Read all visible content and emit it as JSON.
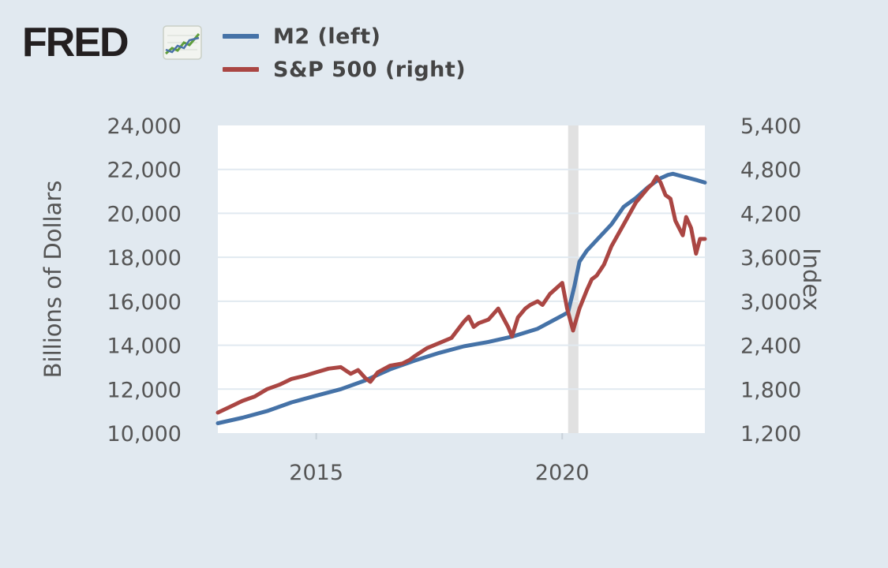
{
  "brand": {
    "logo_text": "FRED",
    "logo_icon": "line-chart-icon",
    "colors": {
      "logo_green": "#5f9e3c",
      "logo_blue": "#4a72a8"
    }
  },
  "legend": [
    {
      "label": "M2 (left)",
      "color": "#4572a7"
    },
    {
      "label": "S&P 500 (right)",
      "color": "#aa4643"
    }
  ],
  "chart_data": {
    "type": "line",
    "title": "",
    "xlabel": "",
    "y_left_label": "Billions of Dollars",
    "y_right_label": "Index",
    "x_range": [
      2013.0,
      2022.9
    ],
    "y_left_range": [
      10000,
      24000
    ],
    "y_right_range": [
      1200,
      5400
    ],
    "x_ticks": [
      2015,
      2020
    ],
    "x_tick_labels": [
      "2015",
      "2020"
    ],
    "y_left_ticks": [
      10000,
      12000,
      14000,
      16000,
      18000,
      20000,
      22000,
      24000
    ],
    "y_left_tick_labels": [
      "10,000",
      "12,000",
      "14,000",
      "16,000",
      "18,000",
      "20,000",
      "22,000",
      "24,000"
    ],
    "y_right_ticks": [
      1200,
      1800,
      2400,
      3000,
      3600,
      4200,
      4800,
      5400
    ],
    "y_right_tick_labels": [
      "1,200",
      "1,800",
      "2,400",
      "3,000",
      "3,600",
      "4,200",
      "4,800",
      "5,400"
    ],
    "recession": {
      "start": 2020.12,
      "end": 2020.33
    },
    "grid": true,
    "background": "#ffffff",
    "series": [
      {
        "name": "M2 (left)",
        "axis": "left",
        "color": "#4572a7",
        "x": [
          2013.0,
          2013.5,
          2014.0,
          2014.5,
          2015.0,
          2015.5,
          2016.0,
          2016.5,
          2017.0,
          2017.5,
          2018.0,
          2018.5,
          2019.0,
          2019.5,
          2020.0,
          2020.12,
          2020.25,
          2020.35,
          2020.5,
          2020.75,
          2021.0,
          2021.25,
          2021.5,
          2021.75,
          2022.0,
          2022.15,
          2022.25,
          2022.5,
          2022.75,
          2022.9
        ],
        "y": [
          10450,
          10700,
          11000,
          11400,
          11700,
          12000,
          12400,
          12900,
          13300,
          13650,
          13950,
          14150,
          14400,
          14750,
          15350,
          15500,
          16700,
          17800,
          18300,
          18900,
          19500,
          20300,
          20700,
          21200,
          21600,
          21750,
          21800,
          21650,
          21500,
          21400
        ]
      },
      {
        "name": "S&P 500 (right)",
        "axis": "right",
        "color": "#aa4643",
        "x": [
          2013.0,
          2013.25,
          2013.5,
          2013.75,
          2014.0,
          2014.25,
          2014.5,
          2014.75,
          2015.0,
          2015.25,
          2015.5,
          2015.7,
          2015.85,
          2016.0,
          2016.1,
          2016.25,
          2016.5,
          2016.75,
          2016.9,
          2017.0,
          2017.25,
          2017.5,
          2017.75,
          2018.0,
          2018.1,
          2018.2,
          2018.3,
          2018.5,
          2018.7,
          2018.9,
          2018.98,
          2019.1,
          2019.25,
          2019.35,
          2019.5,
          2019.6,
          2019.75,
          2020.0,
          2020.1,
          2020.22,
          2020.35,
          2020.5,
          2020.6,
          2020.7,
          2020.85,
          2021.0,
          2021.25,
          2021.5,
          2021.75,
          2021.83,
          2021.92,
          2022.0,
          2022.1,
          2022.2,
          2022.3,
          2022.45,
          2022.52,
          2022.62,
          2022.72,
          2022.8,
          2022.9
        ],
        "y": [
          1480,
          1560,
          1640,
          1700,
          1800,
          1860,
          1940,
          1980,
          2030,
          2080,
          2100,
          2010,
          2060,
          1950,
          1900,
          2030,
          2120,
          2150,
          2200,
          2250,
          2360,
          2430,
          2500,
          2720,
          2790,
          2650,
          2700,
          2750,
          2900,
          2650,
          2520,
          2780,
          2900,
          2950,
          3000,
          2950,
          3100,
          3250,
          2900,
          2600,
          2900,
          3150,
          3300,
          3350,
          3500,
          3750,
          4050,
          4350,
          4550,
          4600,
          4700,
          4620,
          4450,
          4400,
          4100,
          3900,
          4150,
          4000,
          3650,
          3850,
          3850
        ]
      }
    ]
  }
}
